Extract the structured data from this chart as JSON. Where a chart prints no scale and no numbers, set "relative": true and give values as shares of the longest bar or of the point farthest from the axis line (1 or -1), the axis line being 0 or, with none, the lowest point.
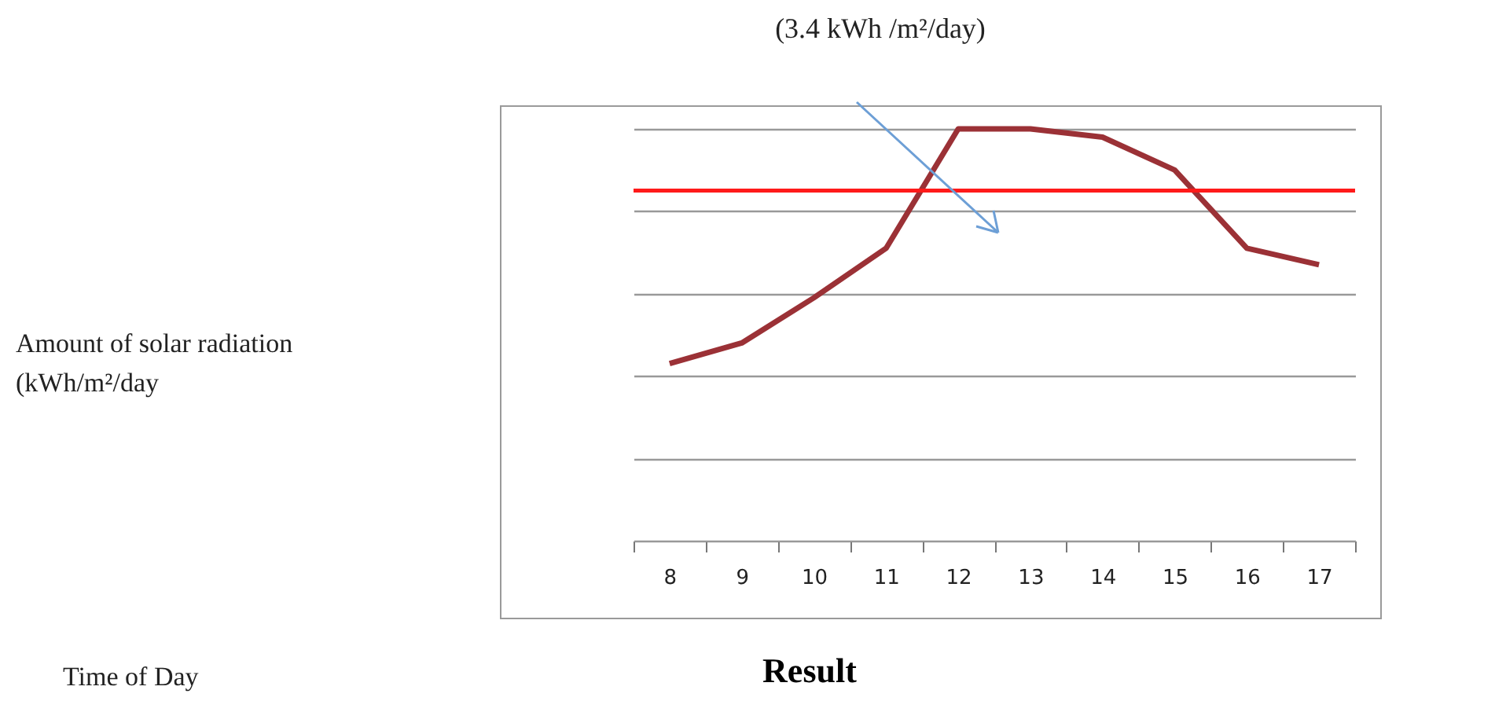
{
  "chart_data": {
    "type": "line",
    "title": "Result",
    "annotations": [
      "Amount of solar radiation (kWh/m²/day",
      "Time of Day",
      "(3.4 kWh /m²/day)"
    ],
    "relative": true,
    "grid": "y",
    "categories": [
      "8",
      "9",
      "10",
      "11",
      "12",
      "13",
      "14",
      "15",
      "16",
      "17"
    ],
    "series": [
      {
        "color": "#9b3136",
        "values": [
          0.43,
          0.48,
          0.59,
          0.71,
          1,
          1,
          0.98,
          0.9,
          0.71,
          0.67
        ]
      }
    ],
    "ref_lines": [
      {
        "axis": "y",
        "value": 0.85,
        "color": "#ff1a1a"
      }
    ]
  }
}
